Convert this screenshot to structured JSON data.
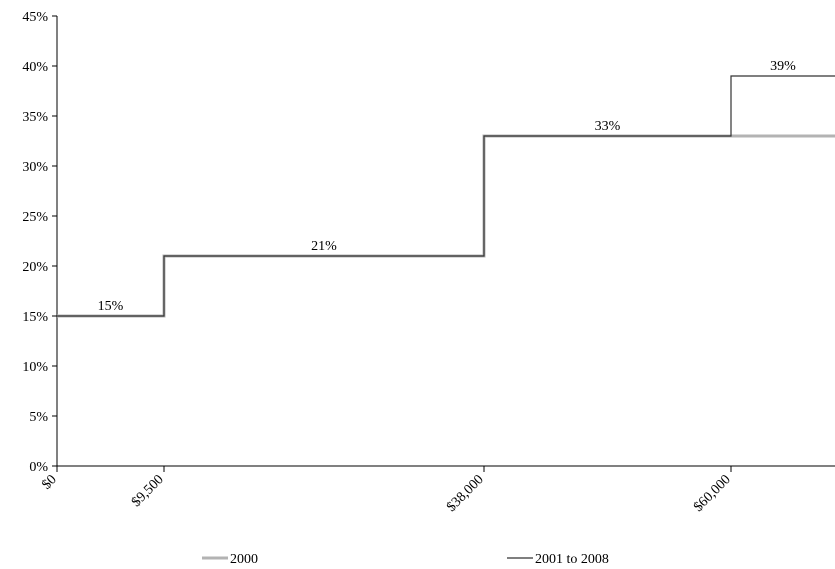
{
  "chart_data": {
    "type": "line",
    "step": true,
    "title": "",
    "xlabel": "",
    "ylabel": "",
    "x_ticks": [
      "$0",
      "$9,500",
      "$38,000",
      "$60,000"
    ],
    "y_ticks": [
      "0%",
      "5%",
      "10%",
      "15%",
      "20%",
      "25%",
      "30%",
      "35%",
      "40%",
      "45%"
    ],
    "ylim": [
      0,
      45
    ],
    "series": [
      {
        "name": "2000",
        "color": "#b3b3b3",
        "x": [
          0,
          9500,
          38000,
          60000,
          69500
        ],
        "y": [
          15,
          21,
          33,
          33,
          33
        ]
      },
      {
        "name": "2001 to 2008",
        "color": "#333333",
        "x": [
          0,
          9500,
          38000,
          60000,
          69500
        ],
        "y": [
          15,
          21,
          33,
          39,
          39
        ]
      }
    ],
    "data_labels": [
      {
        "text": "15%",
        "x": 4750,
        "y": 15
      },
      {
        "text": "21%",
        "x": 23750,
        "y": 21
      },
      {
        "text": "33%",
        "x": 49000,
        "y": 33
      },
      {
        "text": "39%",
        "x": 64750,
        "y": 39
      }
    ],
    "legend_position": "bottom",
    "grid": false
  }
}
